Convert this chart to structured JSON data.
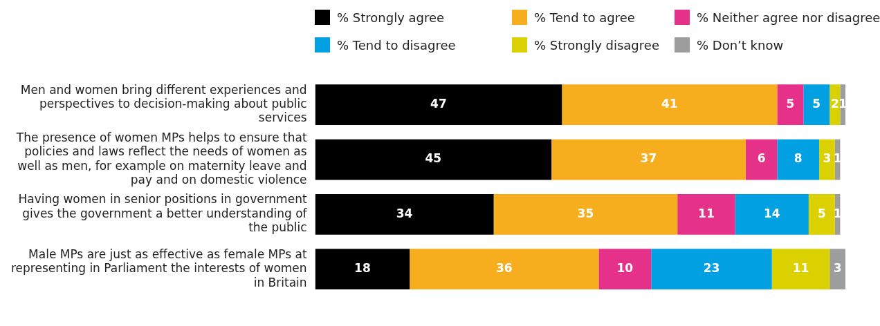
{
  "chart_data": {
    "type": "bar",
    "orientation": "horizontal",
    "stacked": true,
    "data_labels": true,
    "legend": "top right",
    "tick_labels": "y",
    "categories": [
      "Men and women bring different experiences and perspectives to decision-making about public services",
      "The presence of women MPs helps to ensure that policies and laws reflect the needs of women as well as men, for example on maternity leave and pay and on domestic violence",
      "Having women in senior positions in government gives the government a better understanding of the public",
      "Male MPs are just as effective as female MPs at representing in Parliament the interests of women in Britain"
    ],
    "series": [
      {
        "name": "% Strongly agree",
        "color": "#000000",
        "values": [
          47,
          45,
          34,
          18
        ]
      },
      {
        "name": "% Tend to agree",
        "color": "#f7ae1e",
        "values": [
          41,
          37,
          35,
          36
        ]
      },
      {
        "name": "% Neither agree nor disagree",
        "color": "#e5318a",
        "values": [
          5,
          6,
          11,
          10
        ]
      },
      {
        "name": "% Tend to disagree",
        "color": "#00a0e3",
        "values": [
          5,
          8,
          14,
          23
        ]
      },
      {
        "name": "% Strongly disagree",
        "color": "#dbd000",
        "values": [
          2,
          3,
          5,
          11
        ]
      },
      {
        "name": "% Don’t know",
        "color": "#9d9d9d",
        "values": [
          1,
          1,
          1,
          3
        ]
      }
    ]
  }
}
